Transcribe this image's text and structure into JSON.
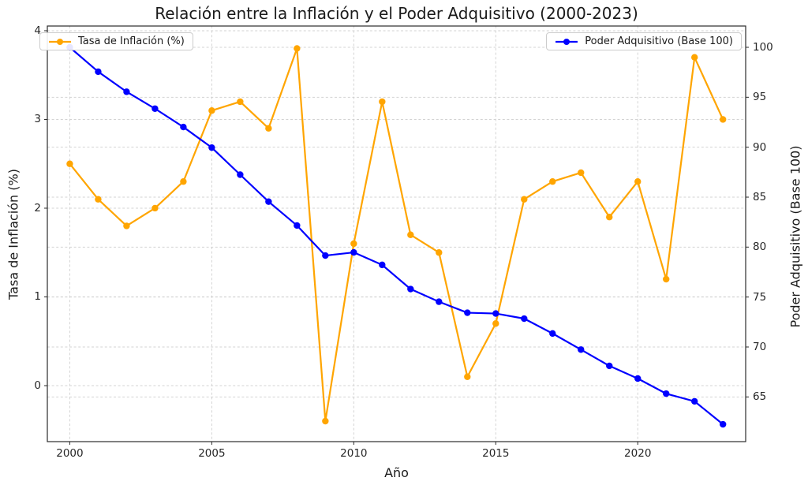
{
  "title": "Relación entre la Inflación y el Poder Adquisitivo (2000-2023)",
  "legend": {
    "inflation_label": "Tasa de Inflación (%)",
    "power_label": "Poder Adquisitivo (Base 100)"
  },
  "chart_data": {
    "type": "line",
    "title": "Relación entre la Inflación y el Poder Adquisitivo (2000-2023)",
    "xlabel": "Año",
    "ylabel_left": "Tasa de Inflación (%)",
    "ylabel_right": "Poder Adquisitivo (Base 100)",
    "x": [
      2000,
      2001,
      2002,
      2003,
      2004,
      2005,
      2006,
      2007,
      2008,
      2009,
      2010,
      2011,
      2012,
      2013,
      2014,
      2015,
      2016,
      2017,
      2018,
      2019,
      2020,
      2021,
      2022,
      2023
    ],
    "series": [
      {
        "name": "Tasa de Inflación (%)",
        "axis": "left",
        "color": "#FFA500",
        "marker": "circle",
        "values": [
          2.5,
          2.1,
          1.8,
          2.0,
          2.3,
          3.1,
          3.2,
          2.9,
          3.8,
          -0.4,
          1.6,
          3.2,
          1.7,
          1.5,
          0.1,
          0.7,
          2.1,
          2.3,
          2.4,
          1.9,
          2.3,
          1.2,
          3.7,
          3.0
        ]
      },
      {
        "name": "Poder Adquisitivo (Base 100)",
        "axis": "right",
        "color": "#0000FF",
        "marker": "circle",
        "values": [
          100.0,
          97.56,
          95.55,
          93.86,
          92.02,
          89.96,
          87.25,
          84.55,
          82.16,
          79.15,
          79.47,
          78.22,
          75.8,
          74.53,
          73.43,
          73.35,
          72.84,
          71.35,
          69.74,
          68.11,
          66.84,
          65.33,
          64.56,
          62.26
        ]
      }
    ],
    "x_ticks": [
      2000,
      2005,
      2010,
      2015,
      2020
    ],
    "y_ticks_left": [
      0,
      1,
      2,
      3,
      4
    ],
    "y_ticks_right": [
      65,
      70,
      75,
      80,
      85,
      90,
      95,
      100
    ],
    "xlim": [
      1999.21,
      2023.8
    ],
    "ylim_left": [
      -0.631,
      4.053
    ],
    "ylim_right": [
      60.525,
      102.131
    ],
    "grid": true,
    "grid_style": "dashed",
    "grid_color": "#cccccc",
    "spine_color": "#2b2b2b",
    "legend_positions": [
      "upper left",
      "upper right"
    ]
  }
}
